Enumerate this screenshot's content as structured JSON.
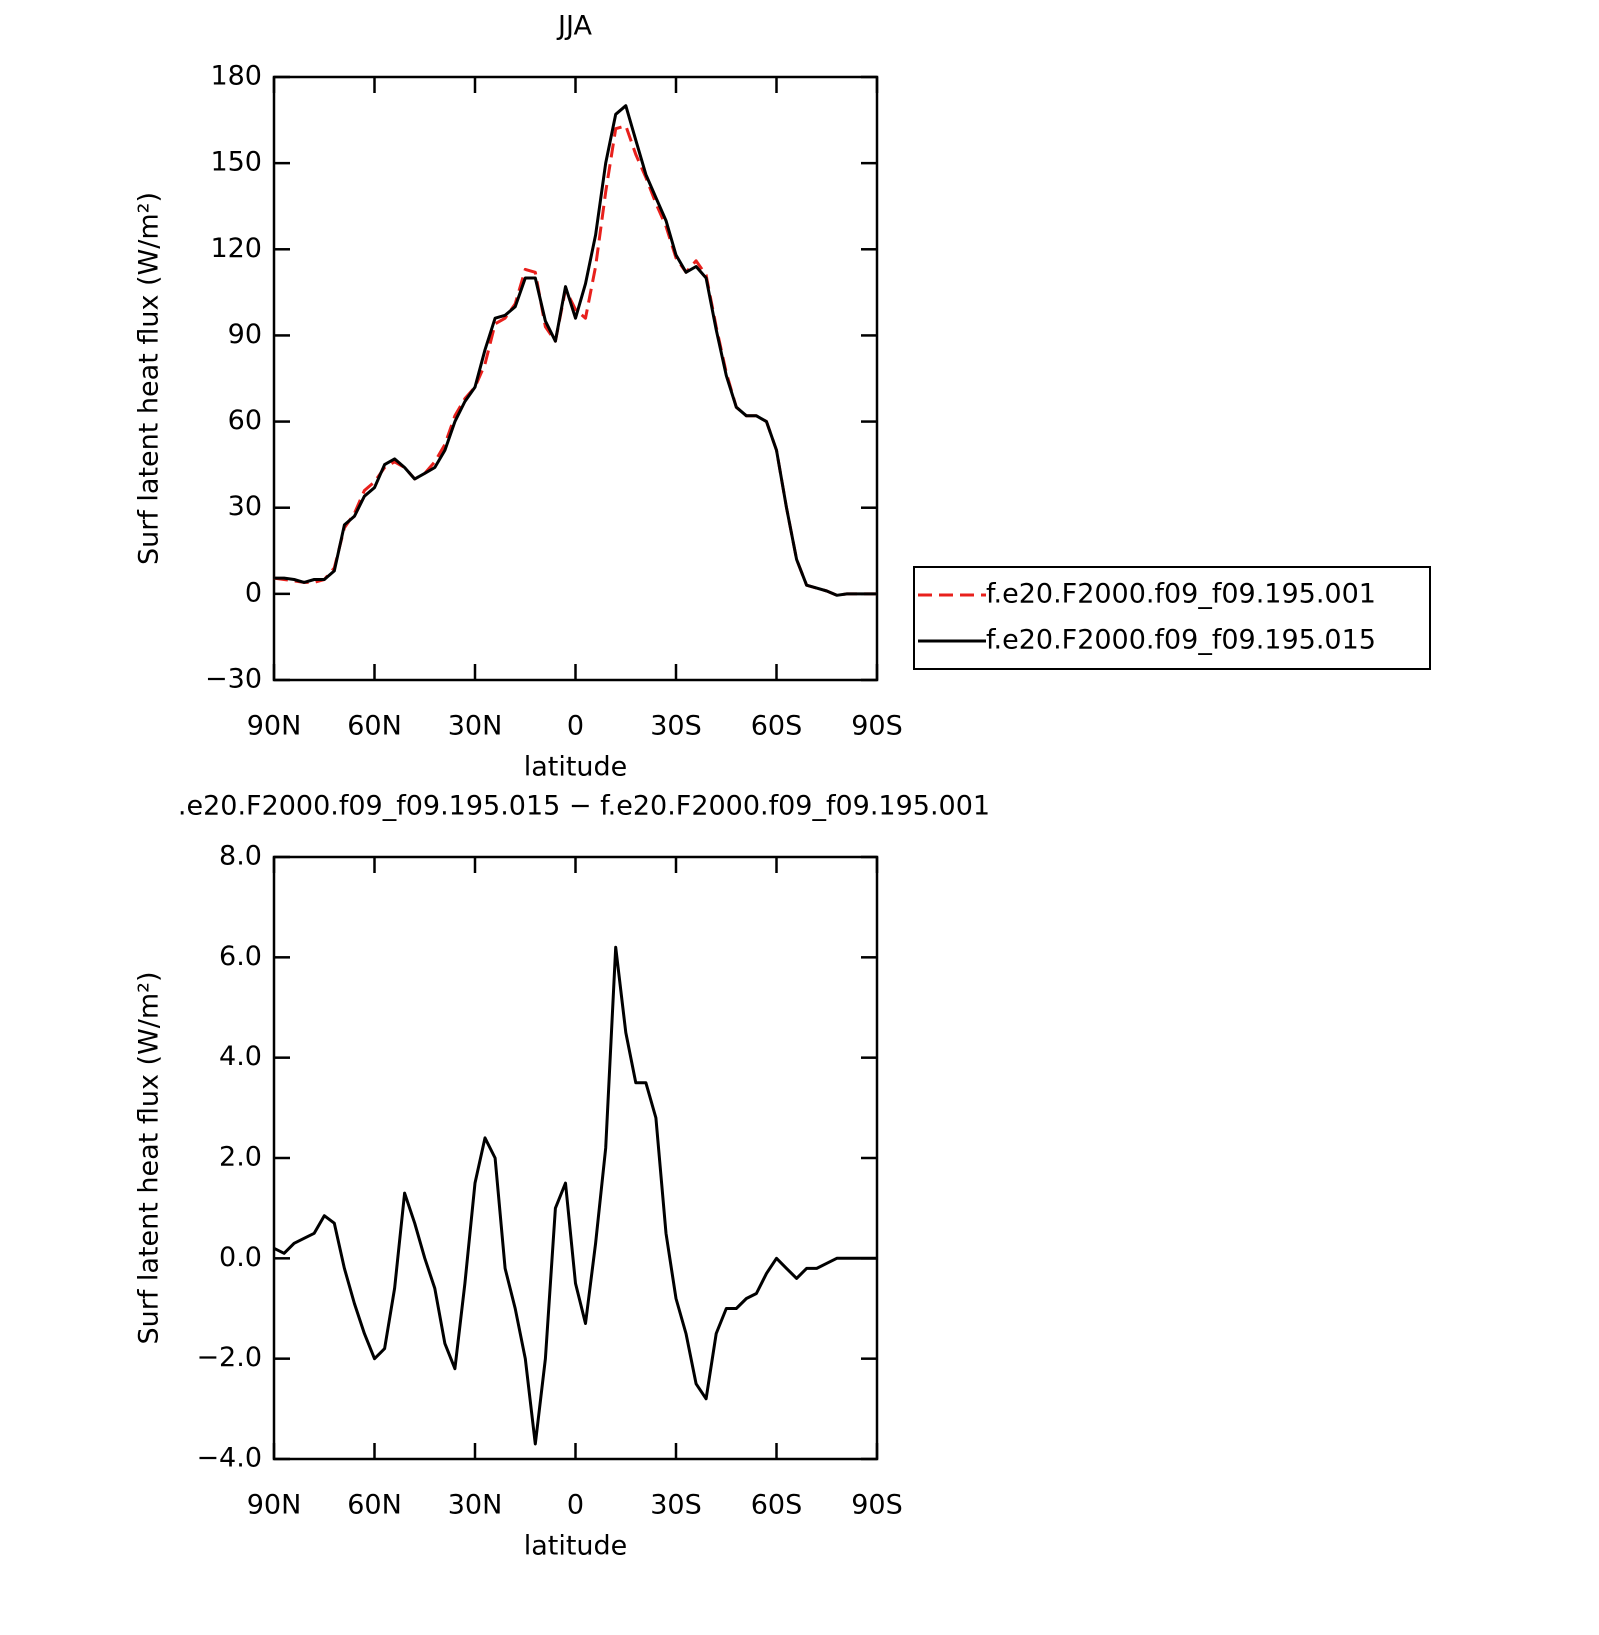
{
  "chart_data": [
    {
      "type": "line",
      "title": "JJA",
      "xlabel": "latitude",
      "ylabel": "Surf latent heat flux (W/m²)",
      "x": [
        90,
        87,
        84,
        81,
        78,
        75,
        72,
        69,
        66,
        63,
        60,
        57,
        54,
        51,
        48,
        45,
        42,
        39,
        36,
        33,
        30,
        27,
        24,
        21,
        18,
        15,
        12,
        9,
        6,
        3,
        0,
        -3,
        -6,
        -9,
        -12,
        -15,
        -18,
        -21,
        -24,
        -27,
        -30,
        -33,
        -36,
        -39,
        -42,
        -45,
        -48,
        -51,
        -54,
        -57,
        -60,
        -63,
        -66,
        -69,
        -72,
        -75,
        -78,
        -81,
        -84,
        -87,
        -90
      ],
      "series": [
        {
          "name": "f.e20.F2000.f09_f09.195.001",
          "color": "#e8201c",
          "dash": true,
          "values": [
            5.5,
            5,
            4.5,
            4,
            4,
            5,
            9,
            23,
            28,
            36,
            39,
            44,
            46,
            44,
            40,
            42,
            46,
            52,
            62,
            68,
            72,
            80,
            94,
            96,
            101,
            113,
            112,
            93,
            88,
            106,
            99,
            96,
            114,
            140,
            162,
            163,
            153,
            145,
            136,
            128,
            117,
            112,
            116,
            111,
            93,
            77,
            65,
            62,
            62,
            60,
            50,
            30,
            12,
            3,
            2,
            1,
            -0.5,
            0,
            0,
            0,
            0
          ]
        },
        {
          "name": "f.e20.F2000.f09_f09.195.015",
          "color": "#000000",
          "dash": false,
          "values": [
            5.5,
            5.5,
            5,
            4,
            5,
            5,
            8,
            24,
            27,
            34,
            37,
            45,
            47,
            44,
            40,
            42,
            44,
            50,
            60,
            67,
            72,
            85,
            96,
            97,
            100,
            110,
            110,
            95,
            88,
            107,
            96,
            108,
            125,
            150,
            167,
            170,
            158,
            146,
            138,
            130,
            118,
            112,
            114,
            110,
            92,
            76,
            65,
            62,
            62,
            60,
            50,
            30,
            12,
            3,
            2,
            1,
            -0.5,
            0,
            0,
            0,
            0
          ]
        }
      ],
      "xlim": [
        90,
        -90
      ],
      "xticks": [
        {
          "value": 90,
          "label": "90N"
        },
        {
          "value": 60,
          "label": "60N"
        },
        {
          "value": 30,
          "label": "30N"
        },
        0,
        {
          "value": -30,
          "label": "30S"
        },
        {
          "value": -60,
          "label": "60S"
        },
        {
          "value": -90,
          "label": "90S"
        }
      ],
      "ylim": [
        -30,
        180
      ],
      "yticks": [
        {
          "value": -30,
          "label": "−30"
        },
        0,
        30,
        60,
        90,
        120,
        150,
        180
      ],
      "legend": "right"
    },
    {
      "type": "line",
      "title": ".e20.F2000.f09_f09.195.015 − f.e20.F2000.f09_f09.195.001",
      "xlabel": "latitude",
      "ylabel": "Surf latent heat flux (W/m²)",
      "x": [
        90,
        87,
        84,
        81,
        78,
        75,
        72,
        69,
        66,
        63,
        60,
        57,
        54,
        51,
        48,
        45,
        42,
        39,
        36,
        33,
        30,
        27,
        24,
        21,
        18,
        15,
        12,
        9,
        6,
        3,
        0,
        -3,
        -6,
        -9,
        -12,
        -15,
        -18,
        -21,
        -24,
        -27,
        -30,
        -33,
        -36,
        -39,
        -42,
        -45,
        -48,
        -51,
        -54,
        -57,
        -60,
        -63,
        -66,
        -69,
        -72,
        -75,
        -78,
        -81,
        -84,
        -87,
        -90
      ],
      "series": [
        {
          "color": "#000000",
          "dash": false,
          "values": [
            0.2,
            0.1,
            0.3,
            0.4,
            0.5,
            0.85,
            0.7,
            -0.2,
            -0.9,
            -1.5,
            -2.0,
            -1.8,
            -0.6,
            1.3,
            0.7,
            0.0,
            -0.6,
            -1.7,
            -2.2,
            -0.5,
            1.5,
            2.4,
            2.0,
            -0.2,
            -1.0,
            -2.0,
            -3.7,
            -2.0,
            1.0,
            1.5,
            -0.5,
            -1.3,
            0.3,
            2.2,
            6.2,
            4.5,
            3.5,
            3.5,
            2.8,
            0.5,
            -0.8,
            -1.5,
            -2.5,
            -2.8,
            -1.5,
            -1.0,
            -1.0,
            -0.8,
            -0.7,
            -0.3,
            0.0,
            -0.2,
            -0.4,
            -0.2,
            -0.2,
            -0.1,
            0.0,
            0.0,
            0.0,
            0.0,
            0.0
          ]
        }
      ],
      "xlim": [
        90,
        -90
      ],
      "xticks": [
        {
          "value": 90,
          "label": "90N"
        },
        {
          "value": 60,
          "label": "60N"
        },
        {
          "value": 30,
          "label": "30N"
        },
        0,
        {
          "value": -30,
          "label": "30S"
        },
        {
          "value": -60,
          "label": "60S"
        },
        {
          "value": -90,
          "label": "90S"
        }
      ],
      "ylim": [
        -4,
        8
      ],
      "yticks": [
        {
          "value": -4,
          "label": "−4.0"
        },
        {
          "value": -2,
          "label": "−2.0"
        },
        {
          "value": 0,
          "label": "0.0"
        },
        {
          "value": 2,
          "label": "2.0"
        },
        {
          "value": 4,
          "label": "4.0"
        },
        {
          "value": 6,
          "label": "6.0"
        },
        {
          "value": 8,
          "label": "8.0"
        }
      ]
    }
  ]
}
